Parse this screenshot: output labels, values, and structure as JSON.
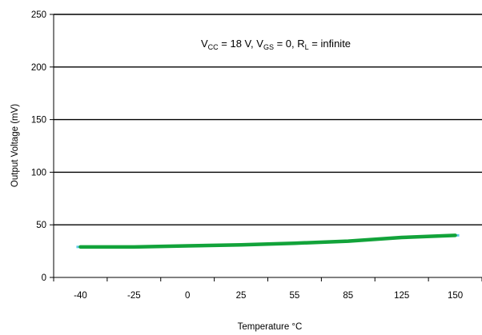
{
  "chart_data": {
    "type": "line",
    "categories": [
      "-40",
      "-25",
      "0",
      "25",
      "55",
      "85",
      "125",
      "150"
    ],
    "series": [
      {
        "values": [
          29,
          29,
          30,
          31,
          32.5,
          34.5,
          38,
          40
        ],
        "color": "#12a33a",
        "marker_color": "#5bc8e8"
      }
    ],
    "xlabel": "Temperature °C",
    "ylabel": "Output Voltage (mV)",
    "ylim": [
      0,
      250
    ],
    "yticks": [
      0,
      50,
      100,
      150,
      200,
      250
    ],
    "grid": "horizontal",
    "annotation": {
      "v": "V",
      "cc_sub": "CC",
      "cc_rest": " = 18 V, V",
      "gs_sub": "GS",
      "gs_rest": " = 0, R",
      "l_sub": "L",
      "l_rest": " = infinite"
    }
  }
}
